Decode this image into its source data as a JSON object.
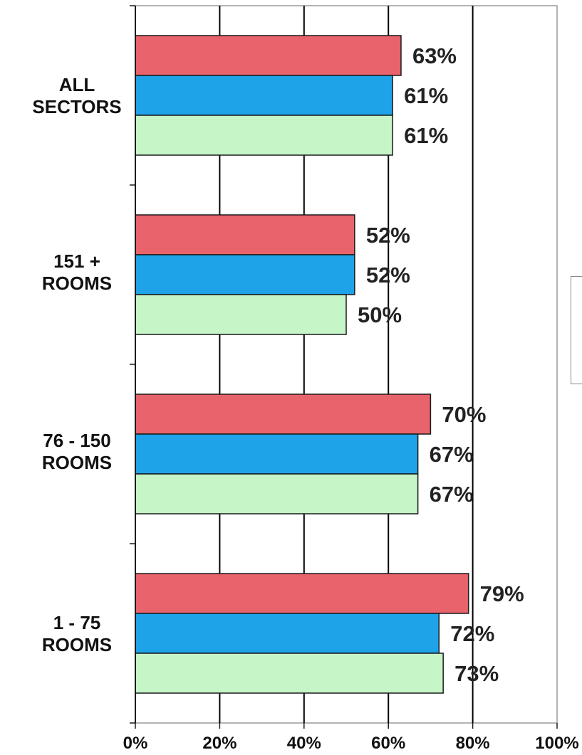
{
  "chart_data": {
    "type": "bar",
    "orientation": "horizontal",
    "title": "",
    "xlabel": "",
    "ylabel": "",
    "xlim": [
      0,
      100
    ],
    "x_ticks": [
      "0%",
      "20%",
      "40%",
      "60%",
      "80%",
      "100%"
    ],
    "grid": "vertical",
    "categories": [
      {
        "line1": "ALL",
        "line2": "SECTORS"
      },
      {
        "line1": "151 +",
        "line2": "ROOMS"
      },
      {
        "line1": "76 - 150",
        "line2": "ROOMS"
      },
      {
        "line1": "1 - 75",
        "line2": "ROOMS"
      }
    ],
    "series": [
      {
        "color": "#e8636b",
        "values": [
          63,
          52,
          70,
          79
        ],
        "labels": [
          "63%",
          "52%",
          "70%",
          "79%"
        ]
      },
      {
        "color": "#1fa3e8",
        "values": [
          61,
          52,
          67,
          72
        ],
        "labels": [
          "61%",
          "52%",
          "67%",
          "72%"
        ]
      },
      {
        "color": "#c6f5c8",
        "values": [
          61,
          50,
          67,
          73
        ],
        "labels": [
          "61%",
          "50%",
          "67%",
          "73%"
        ]
      }
    ],
    "legend": "right (partially visible, entries not shown)"
  }
}
